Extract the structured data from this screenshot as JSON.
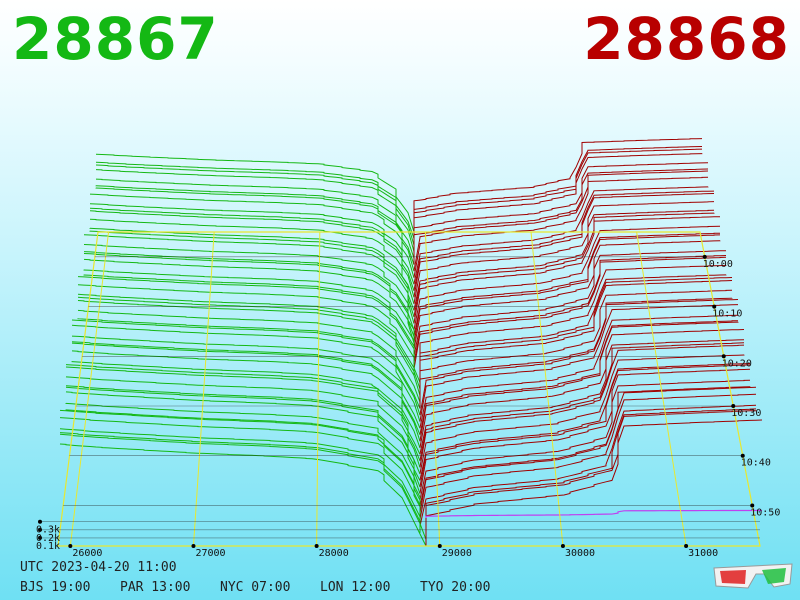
{
  "header": {
    "bid_price": "28867",
    "ask_price": "28868",
    "bid_color": "#14b814",
    "ask_color": "#b80000"
  },
  "footer": {
    "utc": "UTC 2023-04-20 11:00",
    "clocks": [
      "BJS 19:00",
      "PAR 13:00",
      "NYC 07:00",
      "LON 12:00",
      "TYO 20:00"
    ]
  },
  "chart_data": {
    "type": "area",
    "price_ticks": [
      "26000",
      "27000",
      "28000",
      "29000",
      "30000",
      "31000"
    ],
    "volume_ticks": [
      "0.1k",
      "0.2k",
      "0.3k"
    ],
    "time_ticks": [
      "10:00",
      "10:10",
      "10:20",
      "10:30",
      "10:40",
      "10:50"
    ],
    "mid_price": 28867.5,
    "price_range": [
      25900,
      31600
    ],
    "volume_range": [
      0,
      0.45
    ],
    "bid_color": "#14b814",
    "ask_color": "#a00000",
    "series": [
      {
        "name": "bids",
        "points": [
          [
            25900,
            0.34
          ],
          [
            26200,
            0.33
          ],
          [
            27000,
            0.31
          ],
          [
            27600,
            0.3
          ],
          [
            28000,
            0.29
          ],
          [
            28500,
            0.25
          ],
          [
            28700,
            0.16
          ],
          [
            28867,
            0.0
          ]
        ]
      },
      {
        "name": "asks",
        "points": [
          [
            28868,
            0.0
          ],
          [
            28900,
            0.1
          ],
          [
            29300,
            0.14
          ],
          [
            30000,
            0.17
          ],
          [
            30400,
            0.22
          ],
          [
            30500,
            0.4
          ],
          [
            31000,
            0.41
          ],
          [
            31600,
            0.42
          ]
        ]
      }
    ]
  }
}
